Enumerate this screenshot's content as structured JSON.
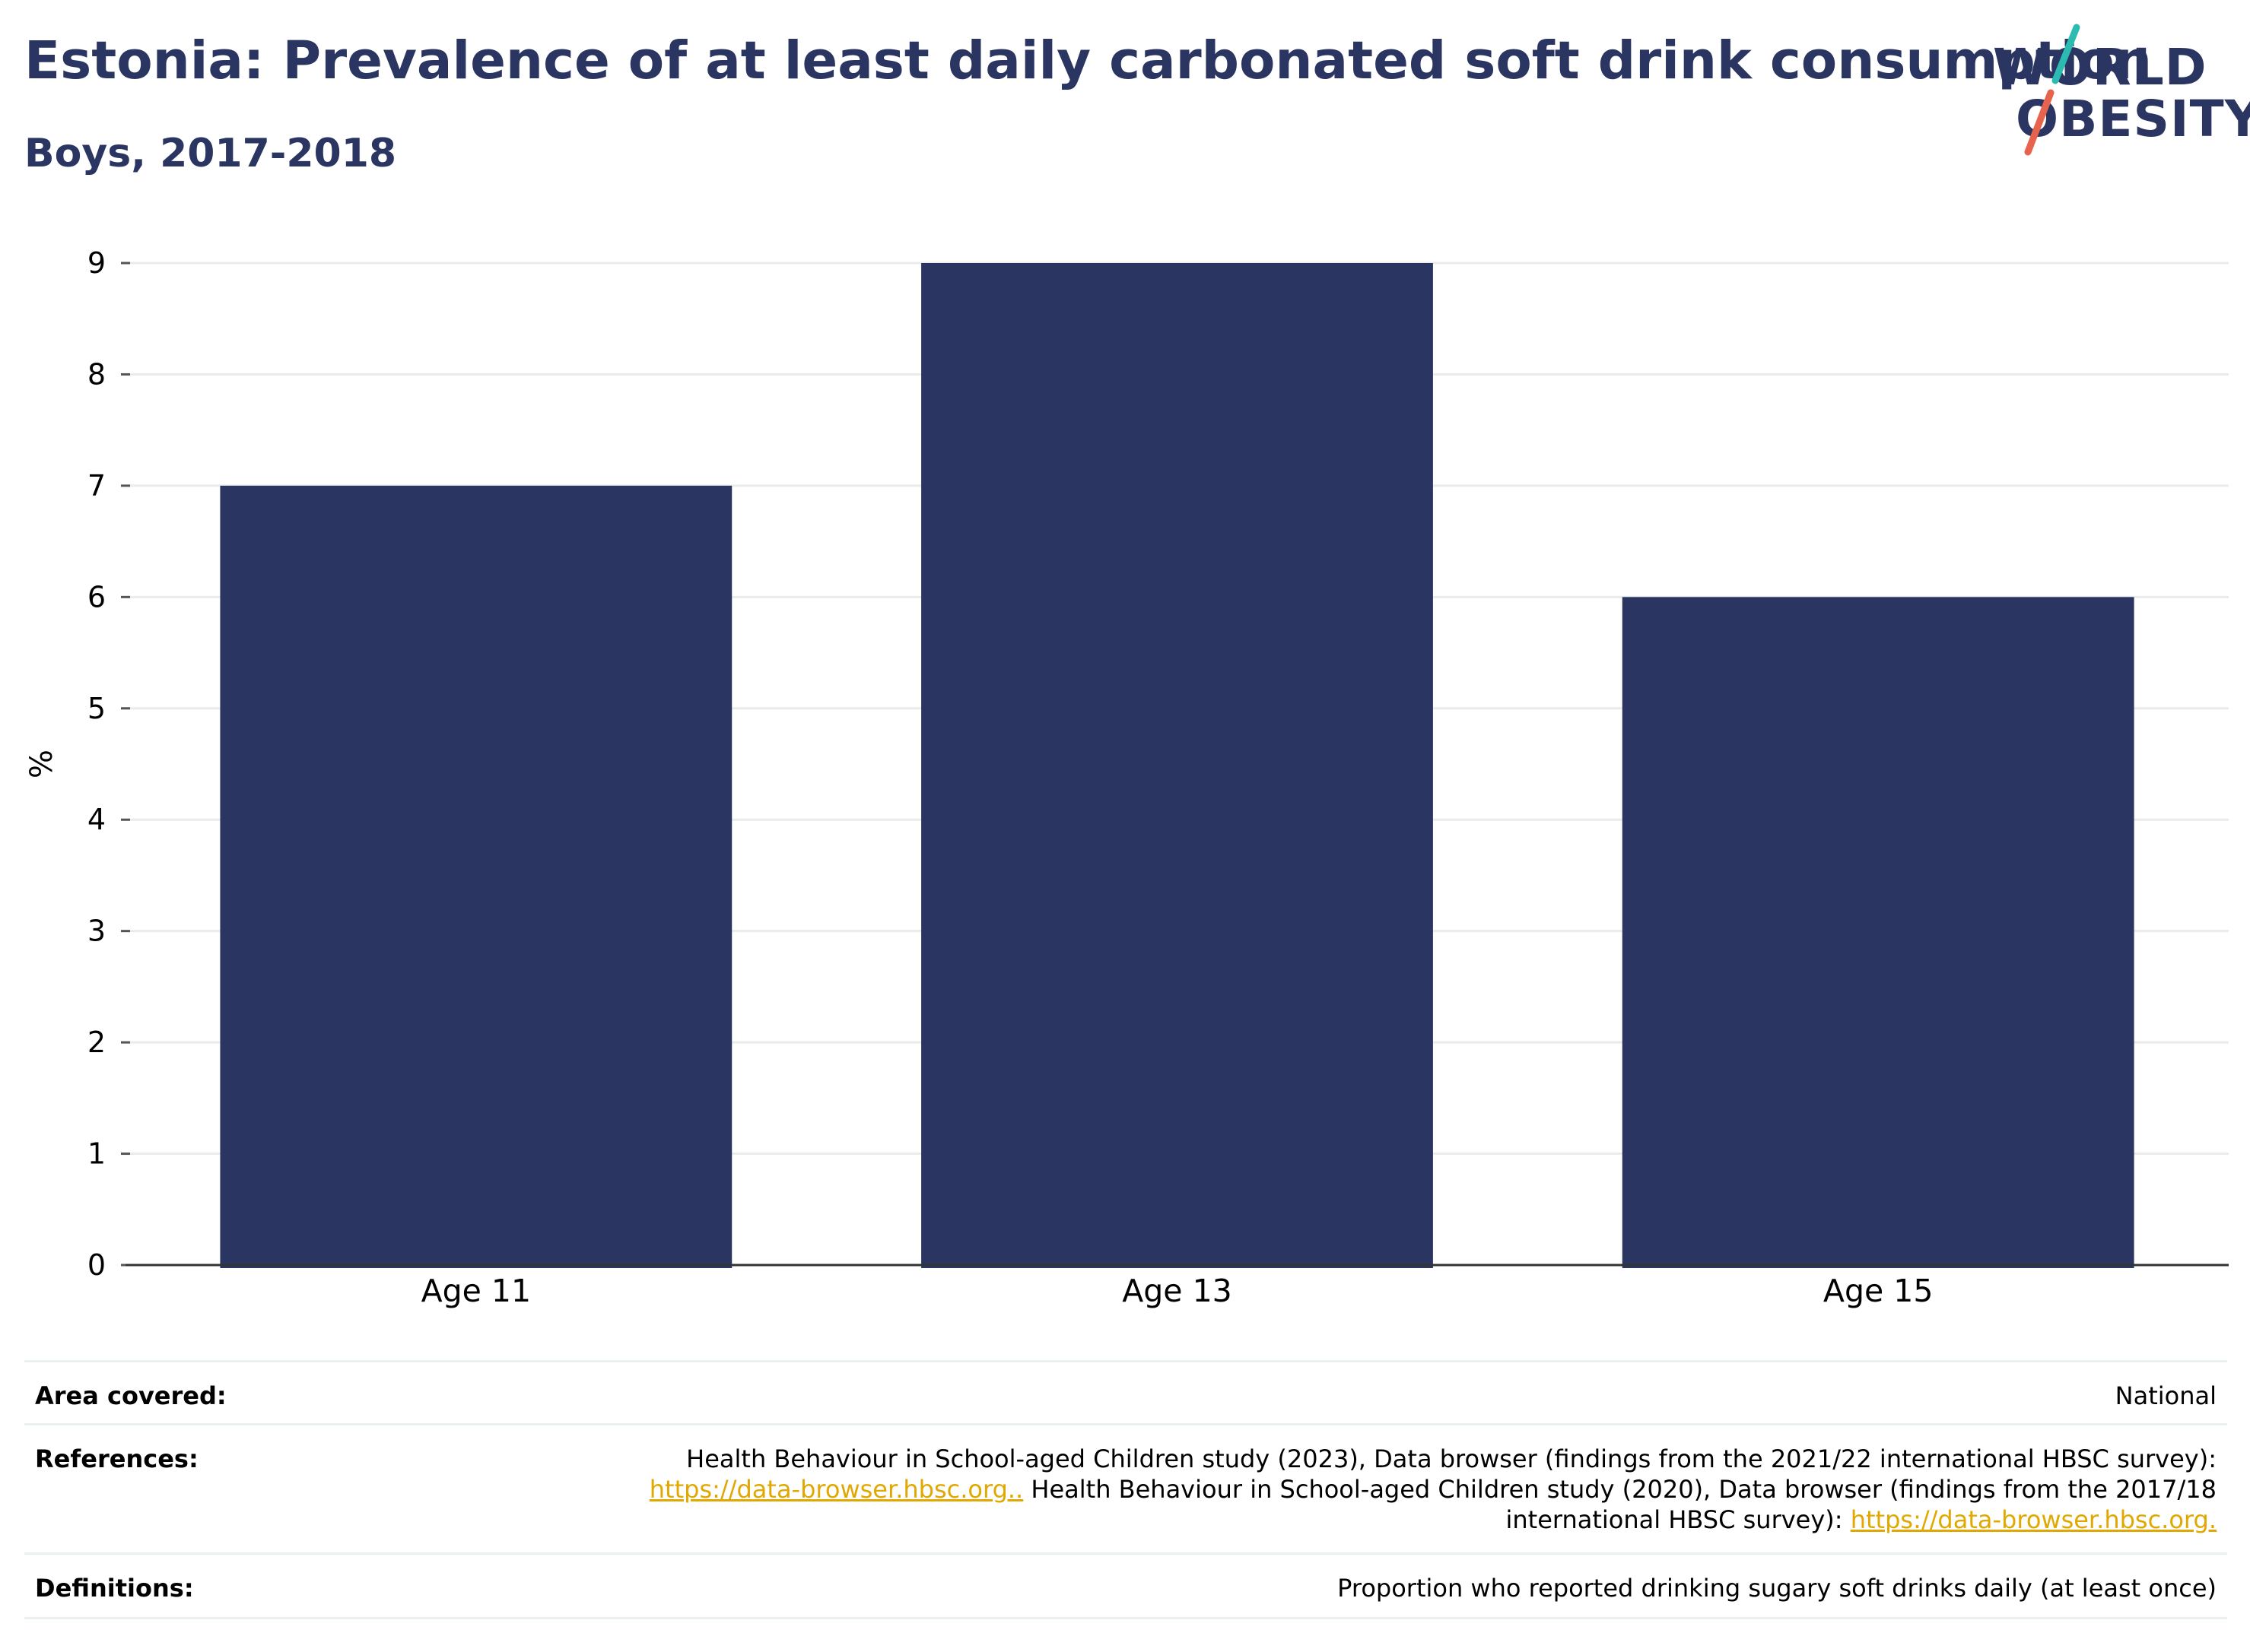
{
  "title": "Estonia: Prevalence of at least daily carbonated soft drink consumption",
  "subtitle": "Boys, 2017-2018",
  "logo": {
    "line1": "WORLD",
    "line2": "OBESITY"
  },
  "colors": {
    "bar": "#2a3561",
    "title": "#2a3561",
    "link": "#e0a800",
    "logo_teal": "#2bbbb0",
    "logo_coral": "#e8634e"
  },
  "chart_data": {
    "type": "bar",
    "categories": [
      "Age 11",
      "Age 13",
      "Age 15"
    ],
    "values": [
      7,
      9,
      6
    ],
    "ylabel": "%",
    "xlabel": "",
    "ylim": [
      0,
      9
    ],
    "yticks": [
      0,
      1,
      2,
      3,
      4,
      5,
      6,
      7,
      8,
      9
    ],
    "grid": true,
    "legend": "none"
  },
  "meta": {
    "area_label": "Area covered:",
    "area_value": "National",
    "references_label": "References:",
    "references_text1": "Health Behaviour in School-aged Children study (2023), Data browser (findings from the 2021/22 international HBSC survey):",
    "references_link1": "https://data-browser.hbsc.org..",
    "references_text2": " Health Behaviour in School-aged Children study (2020), Data browser (findings from the 2017/18",
    "references_text3": "international HBSC survey): ",
    "references_link2": "https://data-browser.hbsc.org.",
    "definitions_label": "Definitions:",
    "definitions_value": "Proportion who reported drinking sugary soft drinks daily (at least once)"
  }
}
